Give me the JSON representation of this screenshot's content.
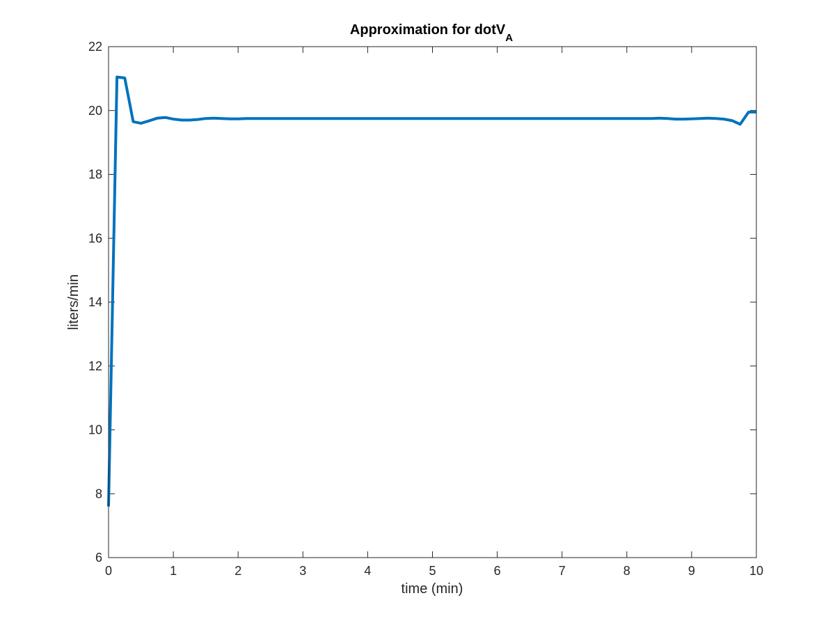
{
  "chart_data": {
    "type": "line",
    "title": "Approximation for dotV",
    "title_subscript": "A",
    "xlabel": "time (min)",
    "ylabel": "liters/min",
    "xlim": [
      0,
      10
    ],
    "ylim": [
      6,
      22
    ],
    "xticks": [
      0,
      1,
      2,
      3,
      4,
      5,
      6,
      7,
      8,
      9,
      10
    ],
    "yticks": [
      6,
      8,
      10,
      12,
      14,
      16,
      18,
      20,
      22
    ],
    "grid": false,
    "legend": "none",
    "series": [
      {
        "color": "#0072BD",
        "x": [
          0,
          0.13,
          0.25,
          0.38,
          0.5,
          0.63,
          0.75,
          0.88,
          1.0,
          1.13,
          1.25,
          1.38,
          1.5,
          1.63,
          1.75,
          1.88,
          2.0,
          2.13,
          2.25,
          2.38,
          2.5,
          3.0,
          3.5,
          4.0,
          4.5,
          5.0,
          5.5,
          6.0,
          6.5,
          7.0,
          7.5,
          8.0,
          8.13,
          8.25,
          8.38,
          8.5,
          8.63,
          8.75,
          8.88,
          9.0,
          9.13,
          9.25,
          9.38,
          9.5,
          9.63,
          9.75,
          9.88,
          10.0
        ],
        "y": [
          7.6,
          21.05,
          21.02,
          19.65,
          19.6,
          19.68,
          19.76,
          19.78,
          19.73,
          19.7,
          19.7,
          19.72,
          19.75,
          19.76,
          19.75,
          19.74,
          19.74,
          19.75,
          19.75,
          19.75,
          19.75,
          19.75,
          19.75,
          19.75,
          19.75,
          19.75,
          19.75,
          19.75,
          19.75,
          19.75,
          19.75,
          19.75,
          19.75,
          19.75,
          19.75,
          19.76,
          19.75,
          19.73,
          19.73,
          19.74,
          19.75,
          19.76,
          19.75,
          19.73,
          19.68,
          19.57,
          19.95,
          19.95
        ]
      }
    ]
  }
}
